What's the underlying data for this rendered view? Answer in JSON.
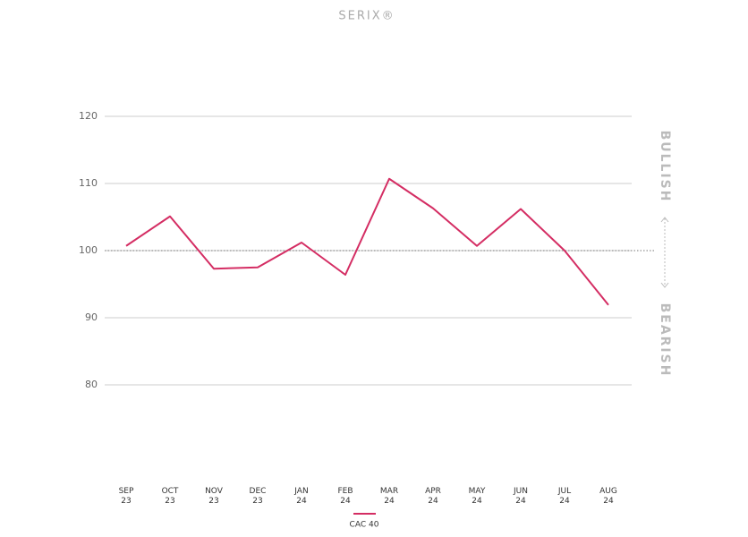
{
  "chart_data": {
    "type": "line",
    "title": "SERIX®",
    "categories": [
      [
        "SEP",
        "23"
      ],
      [
        "OCT",
        "23"
      ],
      [
        "NOV",
        "23"
      ],
      [
        "DEC",
        "23"
      ],
      [
        "JAN",
        "24"
      ],
      [
        "FEB",
        "24"
      ],
      [
        "MAR",
        "24"
      ],
      [
        "APR",
        "24"
      ],
      [
        "MAY",
        "24"
      ],
      [
        "JUN",
        "24"
      ],
      [
        "JUL",
        "24"
      ],
      [
        "AUG",
        "24"
      ]
    ],
    "series": [
      {
        "name": "CAC 40",
        "color": "#d42d63",
        "values": [
          100.7,
          105.1,
          97.3,
          97.5,
          101.2,
          96.4,
          110.7,
          106.3,
          100.7,
          106.2,
          100,
          91.9
        ]
      }
    ],
    "ylim": [
      80,
      120
    ],
    "yticks": [
      80,
      90,
      100,
      110,
      120
    ],
    "grid": true,
    "reference_line": 100,
    "annotations": [
      "BULLISH",
      "BEARISH"
    ]
  }
}
